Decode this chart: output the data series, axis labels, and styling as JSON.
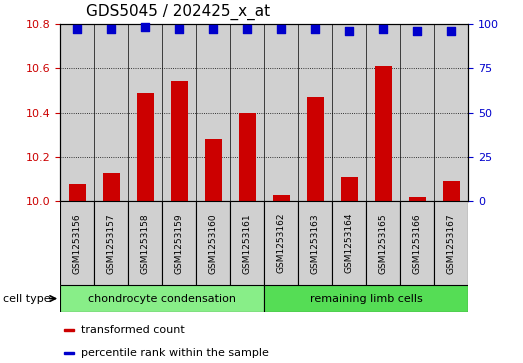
{
  "title": "GDS5045 / 202425_x_at",
  "samples": [
    "GSM1253156",
    "GSM1253157",
    "GSM1253158",
    "GSM1253159",
    "GSM1253160",
    "GSM1253161",
    "GSM1253162",
    "GSM1253163",
    "GSM1253164",
    "GSM1253165",
    "GSM1253166",
    "GSM1253167"
  ],
  "transformed_count": [
    10.08,
    10.13,
    10.49,
    10.54,
    10.28,
    10.4,
    10.03,
    10.47,
    10.11,
    10.61,
    10.02,
    10.09
  ],
  "percentile_rank": [
    97,
    97,
    98,
    97,
    97,
    97,
    97,
    97,
    96,
    97,
    96,
    96
  ],
  "ylim_left": [
    10.0,
    10.8
  ],
  "ylim_right": [
    0,
    100
  ],
  "yticks_left": [
    10.0,
    10.2,
    10.4,
    10.6,
    10.8
  ],
  "yticks_right": [
    0,
    25,
    50,
    75,
    100
  ],
  "bar_color": "#cc0000",
  "dot_color": "#0000cc",
  "groups": [
    {
      "label": "chondrocyte condensation",
      "indices": [
        0,
        1,
        2,
        3,
        4,
        5
      ],
      "color": "#88ee88"
    },
    {
      "label": "remaining limb cells",
      "indices": [
        6,
        7,
        8,
        9,
        10,
        11
      ],
      "color": "#55dd55"
    }
  ],
  "cell_type_label": "cell type",
  "legend1_label": "transformed count",
  "legend2_label": "percentile rank within the sample",
  "bar_width": 0.5,
  "dot_size": 30,
  "background_color": "#d0d0d0",
  "title_fontsize": 11,
  "axis_label_color_left": "#cc0000",
  "axis_label_color_right": "#0000cc",
  "sample_box_color": "#d0d0d0"
}
